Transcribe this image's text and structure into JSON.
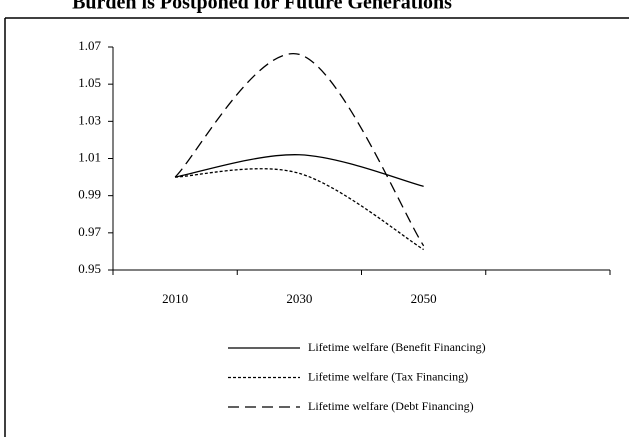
{
  "chart_data": {
    "type": "line",
    "title": "Burden is Postponed for Future Generations",
    "categories": [
      "2010",
      "2030",
      "2050",
      null
    ],
    "series": [
      {
        "name": "Lifetime welfare (Benefit Financing)",
        "color": "#000000",
        "style": "solid",
        "values": [
          1.0,
          1.012,
          0.995,
          null
        ]
      },
      {
        "name": "Lifetime welfare (Tax Financing)",
        "color": "#000000",
        "style": "dotted",
        "values": [
          1.0,
          1.002,
          0.961,
          null
        ]
      },
      {
        "name": "Lifetime welfare (Debt Financing)",
        "color": "#000000",
        "style": "dashed",
        "values": [
          1.0,
          1.066,
          0.963,
          null
        ]
      }
    ],
    "ylim": [
      0.95,
      1.07
    ],
    "yticks": [
      0.95,
      0.97,
      0.99,
      1.01,
      1.03,
      1.05,
      1.07
    ],
    "grid": false,
    "legend": "bottom"
  }
}
